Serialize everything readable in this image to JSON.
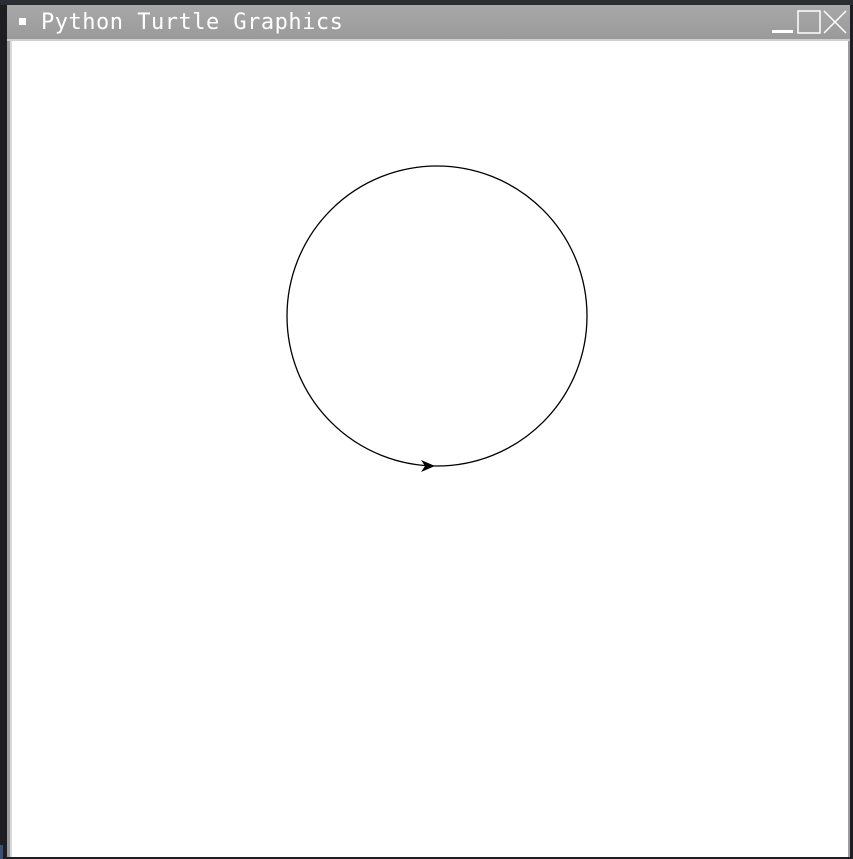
{
  "window": {
    "title": "Python Turtle Graphics",
    "controls": [
      {
        "name": "minimize-button",
        "icon": "minimize-icon"
      },
      {
        "name": "maximize-button",
        "icon": "maximize-icon"
      },
      {
        "name": "close-button",
        "icon": "close-icon"
      }
    ]
  },
  "canvas": {
    "background": "#ffffff",
    "pen_color": "#000000",
    "shape": "circle",
    "turtle_icon": "arrow-cursor-icon"
  }
}
